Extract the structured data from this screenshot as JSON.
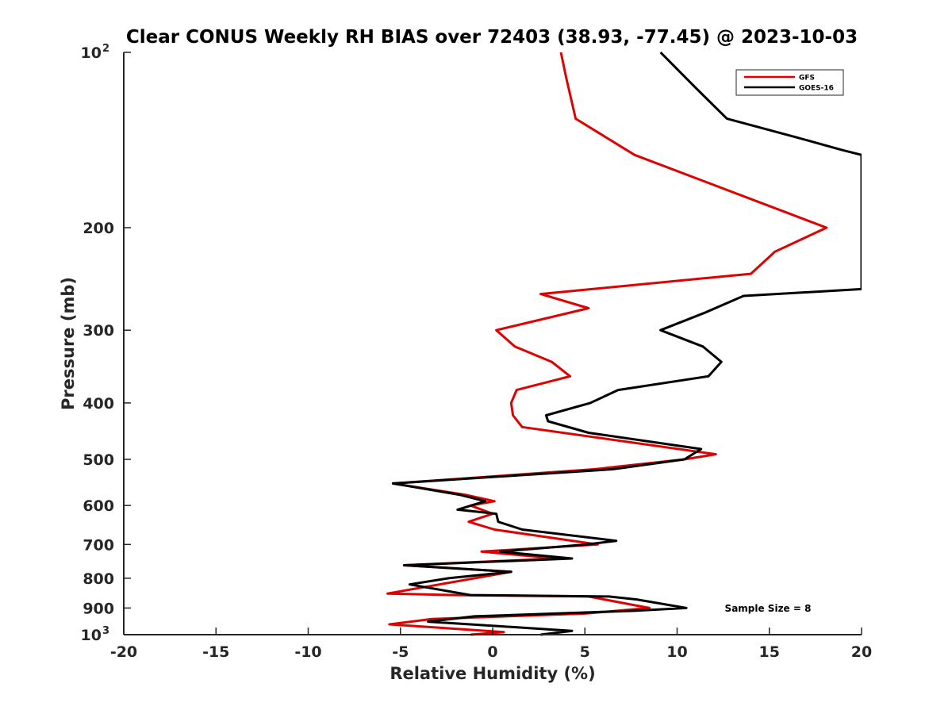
{
  "chart_data": {
    "type": "line",
    "title": "Clear CONUS Weekly RH BIAS over 72403 (38.93, -77.45) @ 2023-10-03",
    "xlabel": "Relative Humidity (%)",
    "ylabel": "Pressure (mb)",
    "xlim": [
      -20,
      20
    ],
    "ylim": [
      100,
      1000
    ],
    "y_scale": "log",
    "y_reversed": true,
    "x_ticks": [
      "-20",
      "-15",
      "-10",
      "-5",
      "0",
      "5",
      "10",
      "15",
      "20"
    ],
    "y_ticks": [
      {
        "value": 100,
        "base": "10",
        "exp": "2"
      },
      {
        "value": 200,
        "base": "200",
        "exp": ""
      },
      {
        "value": 300,
        "base": "300",
        "exp": ""
      },
      {
        "value": 400,
        "base": "400",
        "exp": ""
      },
      {
        "value": 500,
        "base": "500",
        "exp": ""
      },
      {
        "value": 600,
        "base": "600",
        "exp": ""
      },
      {
        "value": 700,
        "base": "700",
        "exp": ""
      },
      {
        "value": 800,
        "base": "800",
        "exp": ""
      },
      {
        "value": 900,
        "base": "900",
        "exp": ""
      },
      {
        "value": 1000,
        "base": "10",
        "exp": "3"
      }
    ],
    "grid": false,
    "legend_position": "top-right",
    "annotation": "Sample Size = 8",
    "series": [
      {
        "name": "GFS",
        "color": "#e00000",
        "points": [
          [
            3.7,
            100
          ],
          [
            4.0,
            111
          ],
          [
            4.5,
            130
          ],
          [
            7.7,
            150
          ],
          [
            18.1,
            200
          ],
          [
            15.3,
            220
          ],
          [
            14.0,
            240
          ],
          [
            2.6,
            260
          ],
          [
            5.2,
            275
          ],
          [
            0.2,
            300
          ],
          [
            1.2,
            320
          ],
          [
            3.2,
            340
          ],
          [
            4.2,
            360
          ],
          [
            1.3,
            380
          ],
          [
            1.0,
            400
          ],
          [
            1.1,
            420
          ],
          [
            1.6,
            440
          ],
          [
            12.1,
            490
          ],
          [
            10.4,
            500
          ],
          [
            5.5,
            520
          ],
          [
            -5.4,
            550
          ],
          [
            -1.5,
            575
          ],
          [
            0.1,
            590
          ],
          [
            -1.2,
            600
          ],
          [
            0.0,
            620
          ],
          [
            -1.3,
            640
          ],
          [
            0.1,
            660
          ],
          [
            5.7,
            700
          ],
          [
            -0.6,
            720
          ],
          [
            3.5,
            740
          ],
          [
            -4.8,
            760
          ],
          [
            1.0,
            780
          ],
          [
            -5.7,
            850
          ],
          [
            -2.0,
            855
          ],
          [
            5.2,
            860
          ],
          [
            8.5,
            900
          ],
          [
            5.0,
            920
          ],
          [
            -3.3,
            940
          ],
          [
            -5.6,
            960
          ],
          [
            0.6,
            990
          ],
          [
            -1.2,
            1000
          ]
        ]
      },
      {
        "name": "GOES-16",
        "color": "#000000",
        "points": [
          [
            9.1,
            100
          ],
          [
            11.0,
            115
          ],
          [
            12.7,
            130
          ],
          [
            16.5,
            140
          ],
          [
            18.9,
            147
          ],
          [
            20.0,
            150
          ],
          [
            20.0,
            255
          ],
          [
            13.6,
            262
          ],
          [
            11.5,
            280
          ],
          [
            9.1,
            300
          ],
          [
            11.4,
            320
          ],
          [
            12.4,
            340
          ],
          [
            11.7,
            360
          ],
          [
            6.8,
            380
          ],
          [
            5.3,
            400
          ],
          [
            2.9,
            420
          ],
          [
            3.0,
            430
          ],
          [
            5.2,
            450
          ],
          [
            11.3,
            480
          ],
          [
            10.4,
            500
          ],
          [
            6.5,
            520
          ],
          [
            -5.4,
            550
          ],
          [
            -1.8,
            575
          ],
          [
            -0.4,
            590
          ],
          [
            -1.9,
            610
          ],
          [
            0.2,
            620
          ],
          [
            0.3,
            640
          ],
          [
            1.6,
            660
          ],
          [
            6.7,
            690
          ],
          [
            5.1,
            700
          ],
          [
            0.4,
            720
          ],
          [
            4.3,
            740
          ],
          [
            -4.8,
            760
          ],
          [
            1.0,
            780
          ],
          [
            -2.4,
            800
          ],
          [
            -4.5,
            820
          ],
          [
            -1.2,
            855
          ],
          [
            6.3,
            860
          ],
          [
            7.8,
            870
          ],
          [
            10.5,
            900
          ],
          [
            7.7,
            910
          ],
          [
            -1.0,
            930
          ],
          [
            -3.5,
            950
          ],
          [
            1.0,
            970
          ],
          [
            4.3,
            985
          ],
          [
            2.6,
            1000
          ]
        ]
      }
    ]
  }
}
